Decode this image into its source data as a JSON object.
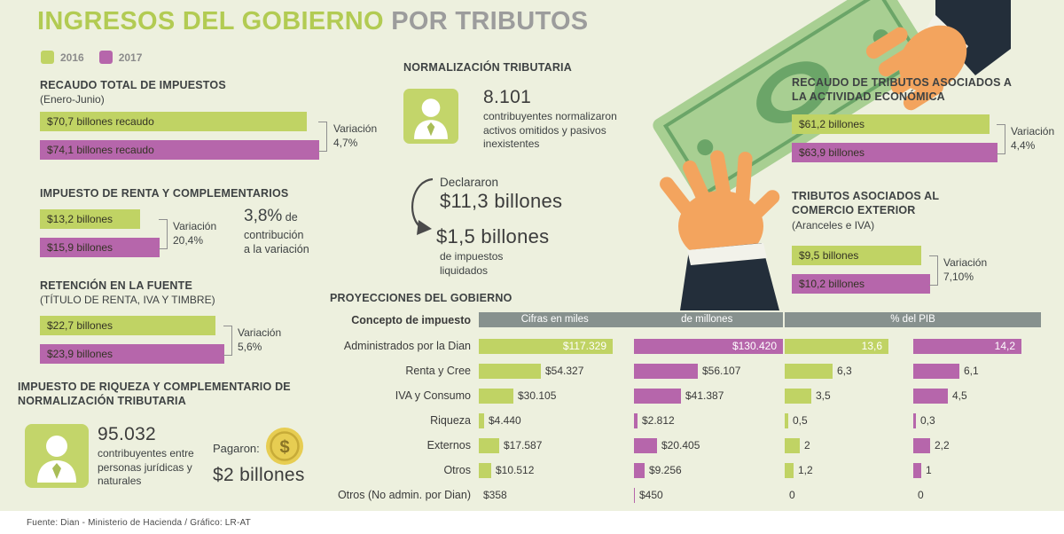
{
  "title": {
    "green": "INGRESOS DEL GOBIERNO",
    "gray": "POR TRIBUTOS"
  },
  "legend": {
    "items": [
      {
        "label": "2016",
        "color": "#c0d364"
      },
      {
        "label": "2017",
        "color": "#b666ab"
      }
    ]
  },
  "colors": {
    "bar_2016": "#c0d364",
    "bar_2017": "#b666ab",
    "table_header": "#87918e",
    "background": "#edf0de",
    "title_green": "#b2cb53",
    "title_gray": "#9c9c9c"
  },
  "normalizacion": {
    "title": "NORMALIZACIÓN TRIBUTARIA",
    "count": "8.101",
    "description": "contribuyentes normalizaron activos omitidos y pasivos inexistentes",
    "declararon_label": "Declararon",
    "declararon_value": "$11,3 billones",
    "liquidados_value": "$1,5 billones",
    "liquidados_description": "de impuestos liquidados"
  },
  "riqueza": {
    "title": "IMPUESTO DE RIQUEZA Y COMPLEMENTARIO DE NORMALIZACIÓN TRIBUTARIA",
    "count": "95.032",
    "description": "contribuyentes entre personas jurídicas y naturales",
    "pagaron_label": "Pagaron:",
    "pagaron_value": "$2 billones"
  },
  "footer": "Fuente:  Dian - Ministerio de Hacienda / Gráfico: LR-AT",
  "chart_data": [
    {
      "type": "bar",
      "title": "RECAUDO TOTAL DE IMPUESTOS",
      "subtitle": "(Enero-Junio)",
      "categories": [
        "2016",
        "2017"
      ],
      "values": [
        70.7,
        74.1
      ],
      "bar_labels": [
        "$70,7 billones recaudo",
        "$74,1 billones recaudo"
      ],
      "variacion_label": "Variación",
      "variacion_value": "4,7%"
    },
    {
      "type": "bar",
      "title": "IMPUESTO DE RENTA Y COMPLEMENTARIOS",
      "categories": [
        "2016",
        "2017"
      ],
      "values": [
        13.2,
        15.9
      ],
      "bar_labels": [
        "$13,2 billones",
        "$15,9 billones"
      ],
      "variacion_label": "Variación",
      "variacion_value": "20,4%",
      "contribucion_value": "3,8%",
      "contribucion_suffix": " de",
      "contribucion_line2": "contribución",
      "contribucion_line3": "a la variación"
    },
    {
      "type": "bar",
      "title": "RETENCIÓN EN LA FUENTE",
      "subtitle": "(TÍTULO DE RENTA, IVA Y TIMBRE)",
      "categories": [
        "2016",
        "2017"
      ],
      "values": [
        22.7,
        23.9
      ],
      "bar_labels": [
        "$22,7 billones",
        "$23,9 billones"
      ],
      "variacion_label": "Variación",
      "variacion_value": "5,6%"
    },
    {
      "type": "bar",
      "title": "RECAUDO DE TRIBUTOS ASOCIADOS A LA ACTIVIDAD ECONÓMICA",
      "categories": [
        "2016",
        "2017"
      ],
      "values": [
        61.2,
        63.9
      ],
      "bar_labels": [
        "$61,2 billones",
        "$63,9 billones"
      ],
      "variacion_label": "Variación",
      "variacion_value": "4,4%"
    },
    {
      "type": "bar",
      "title": "TRIBUTOS ASOCIADOS AL COMERCIO EXTERIOR",
      "subtitle": "(Aranceles e IVA)",
      "categories": [
        "2016",
        "2017"
      ],
      "values": [
        9.5,
        10.2
      ],
      "bar_labels": [
        "$9,5 billones",
        "$10,2 billones"
      ],
      "variacion_label": "Variación",
      "variacion_value": "7,10%"
    },
    {
      "type": "table",
      "title": "PROYECCIONES DEL GOBIERNO",
      "concept_header": "Concepto de impuesto",
      "group_headers": {
        "cifras_part1": "Cifras en miles",
        "cifras_part2": "de millones",
        "pib": "% del PIB"
      },
      "series_names": [
        "Cifras 2016",
        "Cifras 2017",
        "% del PIB 2016",
        "% del PIB 2017"
      ],
      "rows": [
        {
          "label": "Administrados por la Dian",
          "cells": [
            "$117.329",
            "$130.420",
            "13,6",
            "14,2"
          ],
          "values": [
            117329,
            130420,
            13.6,
            14.2
          ],
          "labels_inside": true
        },
        {
          "label": "Renta y Cree",
          "cells": [
            "$54.327",
            "$56.107",
            "6,3",
            "6,1"
          ],
          "values": [
            54327,
            56107,
            6.3,
            6.1
          ]
        },
        {
          "label": "IVA y Consumo",
          "cells": [
            "$30.105",
            "$41.387",
            "3,5",
            "4,5"
          ],
          "values": [
            30105,
            41387,
            3.5,
            4.5
          ]
        },
        {
          "label": "Riqueza",
          "cells": [
            "$4.440",
            "$2.812",
            "0,5",
            "0,3"
          ],
          "values": [
            4440,
            2812,
            0.5,
            0.3
          ]
        },
        {
          "label": "Externos",
          "cells": [
            "$17.587",
            "$20.405",
            "2",
            "2,2"
          ],
          "values": [
            17587,
            20405,
            2,
            2.2
          ]
        },
        {
          "label": "Otros",
          "cells": [
            "$10.512",
            "$9.256",
            "1,2",
            "1"
          ],
          "values": [
            10512,
            9256,
            1.2,
            1
          ]
        },
        {
          "label": "Otros (No admin. por Dian)",
          "cells": [
            "$358",
            "$450",
            "0",
            "0"
          ],
          "values": [
            358,
            450,
            0,
            0
          ]
        }
      ]
    }
  ]
}
